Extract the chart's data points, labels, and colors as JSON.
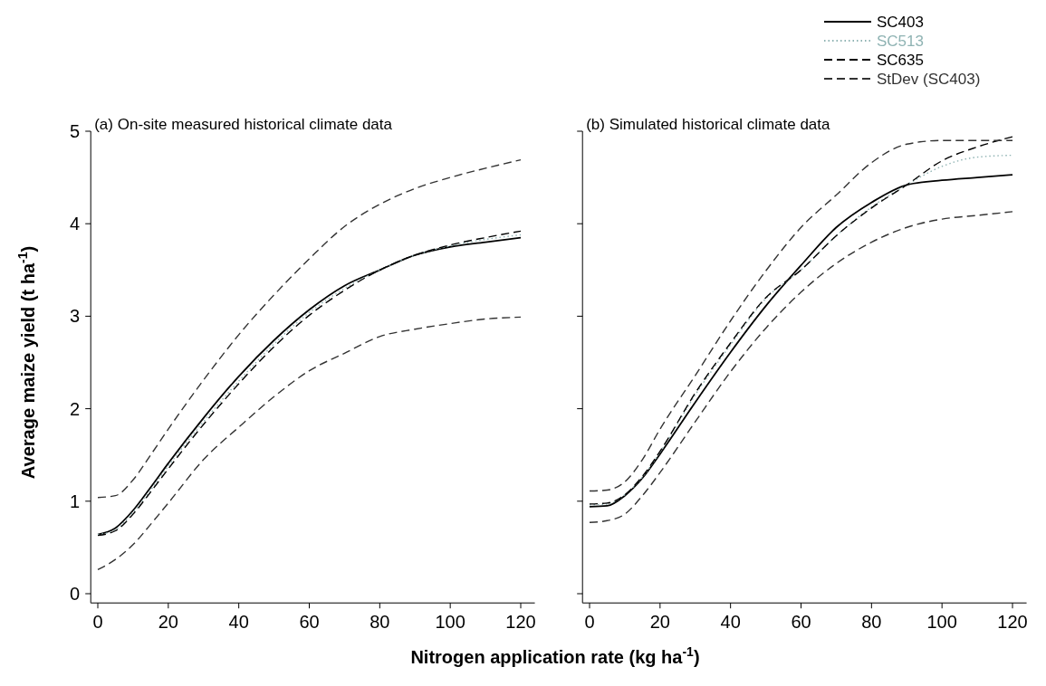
{
  "chart_data": [
    {
      "type": "line",
      "title": "(a) On-site measured historical climate data",
      "xlabel": "Nitrogen application rate (kg ha$^{-1}$)",
      "ylabel": "Average maize yield (t ha$^{-1}$)",
      "x": [
        0,
        5,
        10,
        15,
        20,
        30,
        40,
        50,
        60,
        70,
        80,
        90,
        100,
        110,
        120
      ],
      "xlim": [
        -2,
        124
      ],
      "ylim": [
        -0.1,
        5
      ],
      "xticks": [
        0,
        20,
        40,
        60,
        80,
        100,
        120
      ],
      "yticks": [
        0,
        1,
        2,
        3,
        4,
        5
      ],
      "legend": false,
      "series": [
        {
          "color": "#000000",
          "line_style": "solid",
          "values": [
            0.64,
            0.71,
            0.9,
            1.15,
            1.41,
            1.9,
            2.35,
            2.74,
            3.07,
            3.33,
            3.5,
            3.66,
            3.75,
            3.8,
            3.85
          ]
        },
        {
          "color": "#8fb3b3",
          "line_style": "dotted",
          "values": [
            0.64,
            0.69,
            0.88,
            1.12,
            1.38,
            1.86,
            2.3,
            2.7,
            3.04,
            3.3,
            3.5,
            3.66,
            3.76,
            3.83,
            3.88
          ]
        },
        {
          "color": "#000000",
          "line_style": "dashed",
          "values": [
            0.63,
            0.68,
            0.86,
            1.1,
            1.35,
            1.83,
            2.27,
            2.67,
            3.01,
            3.28,
            3.5,
            3.66,
            3.77,
            3.85,
            3.92
          ]
        },
        {
          "color": "#333333",
          "line_style": "dashed",
          "values": [
            1.04,
            1.06,
            1.23,
            1.5,
            1.78,
            2.31,
            2.8,
            3.23,
            3.62,
            3.97,
            4.21,
            4.38,
            4.5,
            4.6,
            4.69
          ]
        },
        {
          "color": "#333333",
          "line_style": "dashed",
          "values": [
            0.26,
            0.37,
            0.53,
            0.75,
            0.98,
            1.45,
            1.8,
            2.13,
            2.41,
            2.6,
            2.78,
            2.86,
            2.92,
            2.97,
            2.99
          ]
        }
      ]
    },
    {
      "type": "line",
      "title": "(b) Simulated historical climate data",
      "x": [
        0,
        5,
        10,
        15,
        20,
        30,
        40,
        50,
        60,
        70,
        80,
        90,
        100,
        110,
        120
      ],
      "xlim": [
        -2,
        124
      ],
      "ylim": [
        -0.1,
        5
      ],
      "xticks": [
        0,
        20,
        40,
        60,
        80,
        100,
        120
      ],
      "yticks": [
        0,
        1,
        2,
        3,
        4,
        5
      ],
      "tick_labels": "x",
      "legend": "top right",
      "series": [
        {
          "name": "SC403",
          "color": "#000000",
          "line_style": "solid",
          "values": [
            0.94,
            0.95,
            1.06,
            1.25,
            1.51,
            2.07,
            2.61,
            3.11,
            3.55,
            3.96,
            4.23,
            4.42,
            4.47,
            4.5,
            4.53
          ]
        },
        {
          "name": "SC513",
          "color": "#8fb3b3",
          "line_style": "dotted",
          "values": [
            0.96,
            0.97,
            1.07,
            1.26,
            1.53,
            2.15,
            2.69,
            3.19,
            3.5,
            3.87,
            4.18,
            4.42,
            4.62,
            4.72,
            4.74
          ]
        },
        {
          "name": "SC635",
          "color": "#000000",
          "line_style": "dashed",
          "values": [
            0.97,
            0.98,
            1.07,
            1.27,
            1.54,
            2.17,
            2.71,
            3.2,
            3.5,
            3.87,
            4.17,
            4.42,
            4.68,
            4.83,
            4.94
          ]
        },
        {
          "name": "StDev (SC403)",
          "color": "#333333",
          "line_style": "dashed",
          "values": [
            1.11,
            1.12,
            1.21,
            1.45,
            1.78,
            2.36,
            2.95,
            3.49,
            3.96,
            4.31,
            4.66,
            4.86,
            4.9,
            4.9,
            4.9
          ]
        },
        {
          "color": "#333333",
          "line_style": "dashed",
          "values": [
            0.77,
            0.79,
            0.86,
            1.06,
            1.31,
            1.86,
            2.4,
            2.87,
            3.26,
            3.57,
            3.8,
            3.96,
            4.05,
            4.09,
            4.13
          ]
        }
      ]
    }
  ]
}
